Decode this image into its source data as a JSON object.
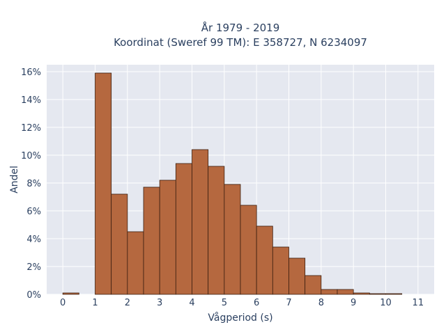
{
  "chart_data": {
    "type": "bar",
    "title": "År 1979 - 2019",
    "subtitle": "Koordinat (Sweref 99 TM): E 358727, N 6234097",
    "xlabel": "Vågperiod (s)",
    "ylabel": "Andel",
    "xlim": [
      -0.5,
      11.5
    ],
    "ylim": [
      0,
      16.5
    ],
    "x_ticks": [
      0,
      1,
      2,
      3,
      4,
      5,
      6,
      7,
      8,
      9,
      10,
      11
    ],
    "y_ticks": [
      0,
      2,
      4,
      6,
      8,
      10,
      12,
      14,
      16
    ],
    "y_tick_suffix": "%",
    "bin_width": 0.5,
    "bins": [
      {
        "x0": 0.0,
        "value": 0.1
      },
      {
        "x0": 1.0,
        "value": 15.9
      },
      {
        "x0": 1.5,
        "value": 7.2
      },
      {
        "x0": 2.0,
        "value": 4.5
      },
      {
        "x0": 2.5,
        "value": 7.7
      },
      {
        "x0": 3.0,
        "value": 8.2
      },
      {
        "x0": 3.5,
        "value": 9.4
      },
      {
        "x0": 4.0,
        "value": 10.4
      },
      {
        "x0": 4.5,
        "value": 9.2
      },
      {
        "x0": 5.0,
        "value": 7.9
      },
      {
        "x0": 5.5,
        "value": 6.4
      },
      {
        "x0": 6.0,
        "value": 4.9
      },
      {
        "x0": 6.5,
        "value": 3.4
      },
      {
        "x0": 7.0,
        "value": 2.6
      },
      {
        "x0": 7.5,
        "value": 1.35
      },
      {
        "x0": 8.0,
        "value": 0.35
      },
      {
        "x0": 8.5,
        "value": 0.35
      },
      {
        "x0": 9.0,
        "value": 0.1
      },
      {
        "x0": 9.5,
        "value": 0.05
      },
      {
        "x0": 10.0,
        "value": 0.05
      }
    ],
    "grid": true,
    "colors": {
      "bar_fill": "#b5683f",
      "bar_stroke": "#3b1f10",
      "plot_bg": "#e5e8f0",
      "grid": "#ffffff",
      "text": "#2a3f5f"
    }
  }
}
